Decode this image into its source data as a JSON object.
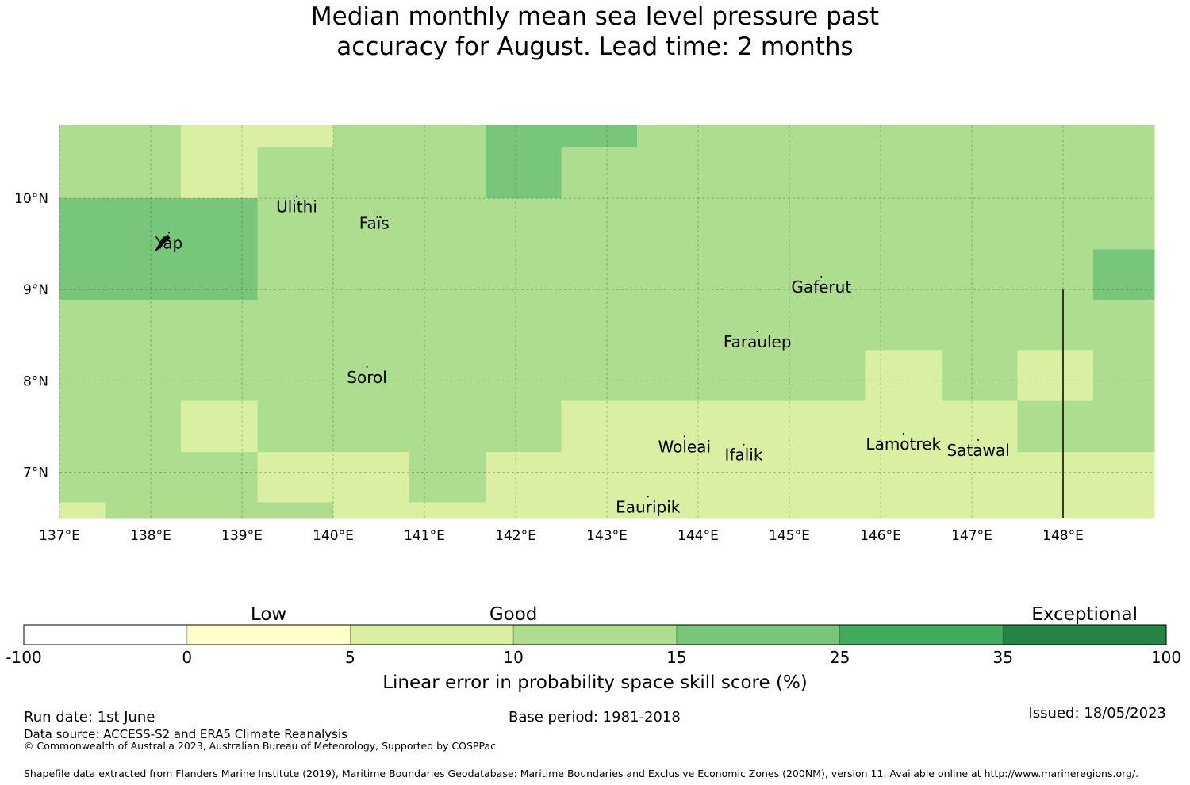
{
  "title": {
    "line1": "Median monthly mean sea level pressure past",
    "line2": "accuracy for August. Lead time: 2 months"
  },
  "map": {
    "lon_labels": [
      "137°E",
      "138°E",
      "139°E",
      "140°E",
      "141°E",
      "142°E",
      "143°E",
      "144°E",
      "145°E",
      "146°E",
      "147°E",
      "148°E"
    ],
    "lon_values": [
      137,
      138,
      139,
      140,
      141,
      142,
      143,
      144,
      145,
      146,
      147,
      148
    ],
    "lat_labels": [
      "10°N",
      "9°N",
      "8°N",
      "7°N"
    ],
    "lat_values": [
      10,
      9,
      8,
      7
    ],
    "extent": {
      "lon": [
        137,
        149
      ],
      "lat": [
        6.5,
        10.8
      ]
    },
    "places": [
      {
        "name": "Yap",
        "lon": 138.2,
        "lat": 9.5
      },
      {
        "name": "Ulithi",
        "lon": 139.6,
        "lat": 9.9
      },
      {
        "name": "Faïs",
        "lon": 140.45,
        "lat": 9.72
      },
      {
        "name": "Gaferut",
        "lon": 145.35,
        "lat": 9.02
      },
      {
        "name": "Faraulep",
        "lon": 144.65,
        "lat": 8.42
      },
      {
        "name": "Sorol",
        "lon": 140.37,
        "lat": 8.03
      },
      {
        "name": "Woleai",
        "lon": 143.85,
        "lat": 7.27
      },
      {
        "name": "Ifalik",
        "lon": 144.5,
        "lat": 7.18
      },
      {
        "name": "Lamotrek",
        "lon": 146.25,
        "lat": 7.3
      },
      {
        "name": "Satawal",
        "lon": 147.07,
        "lat": 7.23
      },
      {
        "name": "Eauripik",
        "lon": 143.45,
        "lat": 6.61
      }
    ],
    "grid_cells_note": "",
    "cells": [
      {
        "lon0": 137.0,
        "lon1": 138.33,
        "lat0": 10.0,
        "lat1": 10.8,
        "cls": 3
      },
      {
        "lon0": 138.33,
        "lon1": 139.17,
        "lat0": 10.0,
        "lat1": 10.8,
        "cls": 2
      },
      {
        "lon0": 139.17,
        "lon1": 140.0,
        "lat0": 10.56,
        "lat1": 10.8,
        "cls": 2
      },
      {
        "lon0": 139.17,
        "lon1": 140.0,
        "lat0": 10.0,
        "lat1": 10.56,
        "cls": 3
      },
      {
        "lon0": 140.0,
        "lon1": 141.67,
        "lat0": 10.0,
        "lat1": 10.8,
        "cls": 3
      },
      {
        "lon0": 141.67,
        "lon1": 142.5,
        "lat0": 10.0,
        "lat1": 10.8,
        "cls": 4
      },
      {
        "lon0": 142.5,
        "lon1": 143.33,
        "lat0": 10.56,
        "lat1": 10.8,
        "cls": 4
      },
      {
        "lon0": 142.5,
        "lon1": 143.33,
        "lat0": 10.0,
        "lat1": 10.56,
        "cls": 3
      },
      {
        "lon0": 143.33,
        "lon1": 149.0,
        "lat0": 10.0,
        "lat1": 10.8,
        "cls": 3
      },
      {
        "lon0": 137.0,
        "lon1": 139.17,
        "lat0": 8.89,
        "lat1": 10.0,
        "cls": 4
      },
      {
        "lon0": 139.17,
        "lon1": 148.33,
        "lat0": 8.89,
        "lat1": 10.0,
        "cls": 3
      },
      {
        "lon0": 148.33,
        "lon1": 149.0,
        "lat0": 9.44,
        "lat1": 10.0,
        "cls": 3
      },
      {
        "lon0": 148.33,
        "lon1": 149.0,
        "lat0": 8.89,
        "lat1": 9.44,
        "cls": 4
      },
      {
        "lon0": 137.0,
        "lon1": 145.83,
        "lat0": 7.78,
        "lat1": 8.89,
        "cls": 3
      },
      {
        "lon0": 145.83,
        "lon1": 146.67,
        "lat0": 8.33,
        "lat1": 8.89,
        "cls": 3
      },
      {
        "lon0": 145.83,
        "lon1": 146.67,
        "lat0": 7.78,
        "lat1": 8.33,
        "cls": 2
      },
      {
        "lon0": 146.67,
        "lon1": 147.5,
        "lat0": 7.78,
        "lat1": 8.89,
        "cls": 3
      },
      {
        "lon0": 147.5,
        "lon1": 148.33,
        "lat0": 8.33,
        "lat1": 8.89,
        "cls": 3
      },
      {
        "lon0": 147.5,
        "lon1": 148.33,
        "lat0": 7.78,
        "lat1": 8.33,
        "cls": 2
      },
      {
        "lon0": 148.33,
        "lon1": 149.0,
        "lat0": 7.78,
        "lat1": 8.89,
        "cls": 3
      },
      {
        "lon0": 137.0,
        "lon1": 138.33,
        "lat0": 7.22,
        "lat1": 7.78,
        "cls": 3
      },
      {
        "lon0": 138.33,
        "lon1": 139.17,
        "lat0": 7.22,
        "lat1": 7.78,
        "cls": 2
      },
      {
        "lon0": 139.17,
        "lon1": 142.5,
        "lat0": 7.22,
        "lat1": 7.78,
        "cls": 3
      },
      {
        "lon0": 142.5,
        "lon1": 147.5,
        "lat0": 7.22,
        "lat1": 7.78,
        "cls": 2
      },
      {
        "lon0": 147.5,
        "lon1": 149.0,
        "lat0": 7.22,
        "lat1": 7.78,
        "cls": 3
      },
      {
        "lon0": 137.0,
        "lon1": 139.17,
        "lat0": 6.67,
        "lat1": 7.22,
        "cls": 3
      },
      {
        "lon0": 139.17,
        "lon1": 140.83,
        "lat0": 6.67,
        "lat1": 7.22,
        "cls": 2
      },
      {
        "lon0": 140.83,
        "lon1": 141.67,
        "lat0": 6.67,
        "lat1": 7.22,
        "cls": 3
      },
      {
        "lon0": 141.67,
        "lon1": 149.0,
        "lat0": 6.67,
        "lat1": 7.22,
        "cls": 2
      },
      {
        "lon0": 137.0,
        "lon1": 137.5,
        "lat0": 6.5,
        "lat1": 6.67,
        "cls": 2
      },
      {
        "lon0": 137.5,
        "lon1": 139.17,
        "lat0": 6.5,
        "lat1": 6.67,
        "cls": 3
      },
      {
        "lon0": 139.17,
        "lon1": 140.0,
        "lat0": 6.5,
        "lat1": 6.67,
        "cls": 3
      },
      {
        "lon0": 140.0,
        "lon1": 149.0,
        "lat0": 6.5,
        "lat1": 6.67,
        "cls": 2
      }
    ],
    "boundary_lon": 148.0,
    "boundary_lat": [
      6.5,
      9.0
    ]
  },
  "colorbar": {
    "categories": [
      "Low",
      "Good",
      "Exceptional"
    ],
    "tick_labels": [
      "-100",
      "0",
      "5",
      "10",
      "15",
      "25",
      "35",
      "100"
    ],
    "colors": [
      "#ffffff",
      "#ffffcc",
      "#d9f0a3",
      "#addd8e",
      "#78c679",
      "#41ab5d",
      "#238443"
    ],
    "label": "Linear error in probability space skill score (%)"
  },
  "footer": {
    "run_date": "Run date: 1st June",
    "base_period": "Base period: 1981-2018",
    "issued": "Issued: 18/05/2023",
    "data_source": "Data source: ACCESS-S2 and ERA5 Climate Reanalysis",
    "copyright": "© Commonwealth of Australia 2023, Australian Bureau of Meteorology, Supported by COSPPac",
    "shapefile": "Shapefile data extracted from Flanders Marine Institute (2019), Maritime Boundaries Geodatabase: Maritime Boundaries and Exclusive Economic Zones (200NM), version 11. Available online at http://www.marineregions.org/."
  }
}
